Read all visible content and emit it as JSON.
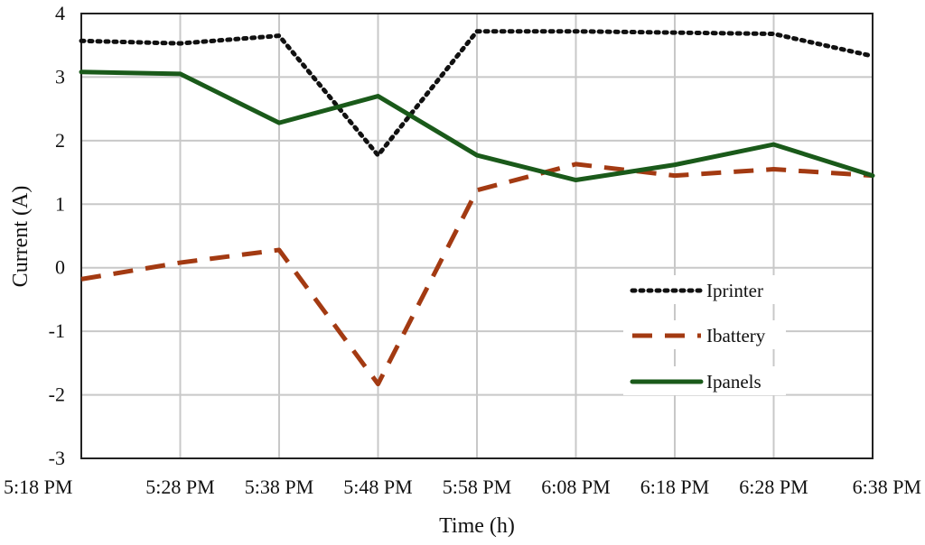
{
  "chart_data": {
    "type": "line",
    "xlabel": "Time (h)",
    "ylabel": "Current (A)",
    "categories": [
      "5:18 PM",
      "5:28 PM",
      "5:38 PM",
      "5:48 PM",
      "5:58 PM",
      "6:08 PM",
      "6:18 PM",
      "6:28 PM",
      "6:38 PM"
    ],
    "ylim": [
      -3,
      4
    ],
    "yticks": [
      -3,
      -2,
      -1,
      0,
      1,
      2,
      3,
      4
    ],
    "grid": true,
    "legend_position": "right",
    "series": [
      {
        "name": "Iprinter",
        "style": "dotted",
        "color": "#111111",
        "values": [
          3.57,
          3.53,
          3.65,
          1.77,
          3.72,
          3.72,
          3.7,
          3.68,
          3.33
        ]
      },
      {
        "name": "Ibattery",
        "style": "dashed",
        "color": "#a33a12",
        "values": [
          -0.18,
          0.08,
          0.28,
          -1.83,
          1.22,
          1.63,
          1.45,
          1.55,
          1.45
        ]
      },
      {
        "name": "Ipanels",
        "style": "solid",
        "color": "#1a5a1a",
        "values": [
          3.08,
          3.05,
          2.28,
          2.7,
          1.77,
          1.38,
          1.62,
          1.94,
          1.45
        ]
      }
    ]
  }
}
